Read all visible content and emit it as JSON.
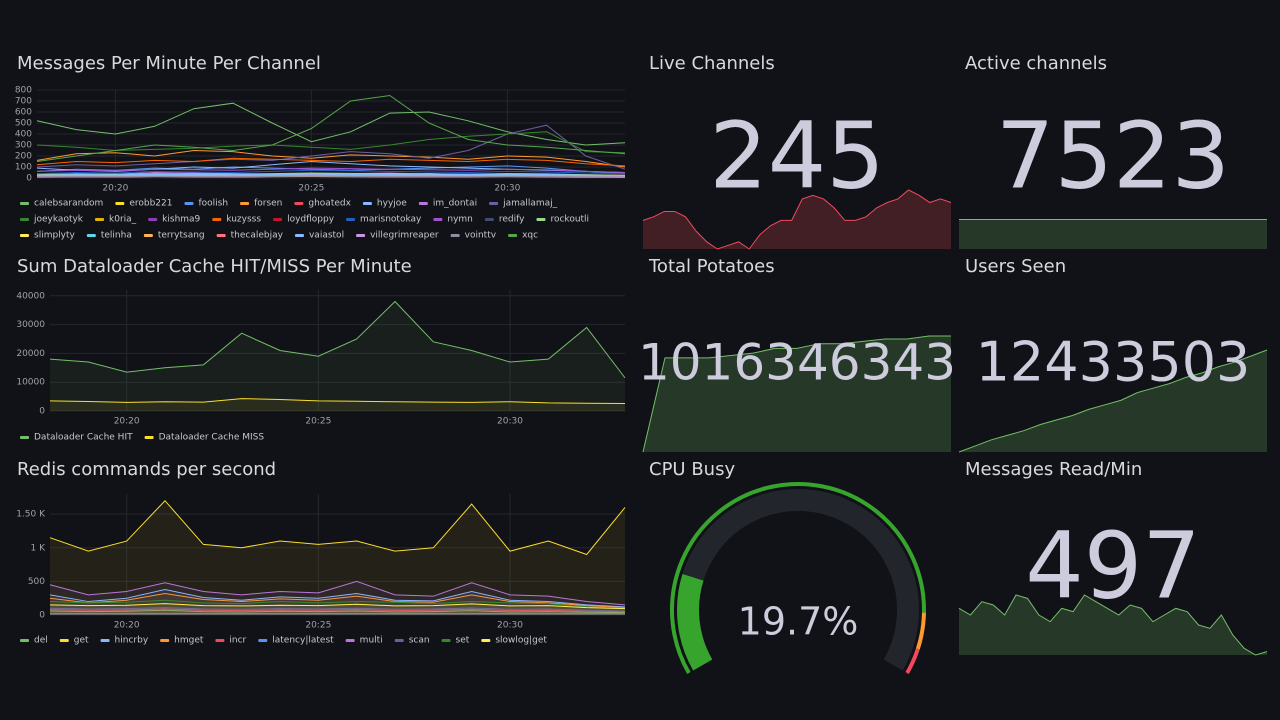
{
  "chart_data": [
    {
      "type": "line",
      "title": "Messages Per Minute Per Channel",
      "x": [
        "20:18",
        "20:19",
        "20:20",
        "20:21",
        "20:22",
        "20:23",
        "20:24",
        "20:25",
        "20:26",
        "20:27",
        "20:28",
        "20:29",
        "20:30",
        "20:31",
        "20:32",
        "20:33"
      ],
      "xticks": [
        "20:20",
        "20:25",
        "20:30"
      ],
      "ylim": [
        0,
        800
      ],
      "yticks": [
        0,
        100,
        200,
        300,
        400,
        500,
        600,
        700,
        800
      ],
      "grid": true,
      "fill": false,
      "series": [
        {
          "name": "calebsarandom",
          "color": "#73bf69",
          "values": [
            520,
            440,
            400,
            470,
            630,
            680,
            500,
            330,
            420,
            590,
            600,
            520,
            420,
            350,
            300,
            320
          ]
        },
        {
          "name": "erobb221",
          "color": "#fade2a",
          "values": [
            40,
            30,
            35,
            30,
            40,
            35,
            30,
            25,
            30,
            35,
            40,
            30,
            25,
            30,
            20,
            15
          ]
        },
        {
          "name": "foolish",
          "color": "#5794f2",
          "values": [
            60,
            80,
            70,
            90,
            80,
            100,
            90,
            80,
            70,
            80,
            90,
            100,
            110,
            90,
            60,
            40
          ]
        },
        {
          "name": "forsen",
          "color": "#ff9830",
          "values": [
            160,
            220,
            230,
            200,
            250,
            240,
            200,
            180,
            210,
            200,
            190,
            170,
            200,
            190,
            150,
            100
          ]
        },
        {
          "name": "ghoatedx",
          "color": "#f2495c",
          "values": [
            20,
            25,
            20,
            30,
            25,
            20,
            30,
            25,
            20,
            30,
            25,
            20,
            15,
            20,
            25,
            20
          ]
        },
        {
          "name": "hyyjoe",
          "color": "#8ab8ff",
          "values": [
            90,
            70,
            60,
            80,
            100,
            90,
            120,
            150,
            130,
            110,
            100,
            90,
            80,
            70,
            60,
            50
          ]
        },
        {
          "name": "im_dontai",
          "color": "#b877d9",
          "values": [
            30,
            40,
            35,
            50,
            45,
            40,
            35,
            30,
            40,
            45,
            35,
            30,
            40,
            35,
            30,
            25
          ]
        },
        {
          "name": "jamallamaj_",
          "color": "#705da0",
          "values": [
            100,
            120,
            110,
            130,
            150,
            170,
            160,
            200,
            240,
            220,
            180,
            250,
            400,
            480,
            200,
            80
          ]
        },
        {
          "name": "joeykaotyk",
          "color": "#37872d",
          "values": [
            300,
            280,
            250,
            260,
            270,
            290,
            300,
            280,
            260,
            300,
            350,
            380,
            400,
            420,
            240,
            230
          ]
        },
        {
          "name": "k0ria_",
          "color": "#e0b400",
          "values": [
            10,
            15,
            10,
            20,
            15,
            10,
            15,
            20,
            10,
            15,
            10,
            20,
            15,
            10,
            5,
            5
          ]
        },
        {
          "name": "kishma9",
          "color": "#8f3bb8",
          "values": [
            20,
            25,
            30,
            25,
            20,
            30,
            25,
            20,
            30,
            25,
            20,
            25,
            30,
            25,
            20,
            15
          ]
        },
        {
          "name": "kuzysss",
          "color": "#fa6400",
          "values": [
            120,
            150,
            140,
            160,
            150,
            180,
            170,
            160,
            150,
            170,
            160,
            150,
            170,
            160,
            130,
            110
          ]
        },
        {
          "name": "loydfloppy",
          "color": "#c4162a",
          "values": [
            5,
            10,
            8,
            12,
            10,
            8,
            10,
            12,
            8,
            10,
            12,
            8,
            10,
            8,
            6,
            5
          ]
        },
        {
          "name": "marisnotokay",
          "color": "#1f60c4",
          "values": [
            40,
            50,
            45,
            60,
            55,
            50,
            60,
            70,
            65,
            60,
            55,
            50,
            60,
            55,
            45,
            40
          ]
        },
        {
          "name": "nymn",
          "color": "#a352cc",
          "values": [
            60,
            70,
            65,
            80,
            75,
            70,
            80,
            90,
            85,
            80,
            75,
            70,
            80,
            75,
            60,
            50
          ]
        },
        {
          "name": "redify",
          "color": "#404e6e",
          "values": [
            15,
            20,
            18,
            22,
            20,
            18,
            22,
            25,
            20,
            22,
            20,
            18,
            20,
            18,
            15,
            12
          ]
        },
        {
          "name": "rockoutli",
          "color": "#96d98d",
          "values": [
            30,
            35,
            32,
            40,
            38,
            35,
            40,
            45,
            42,
            40,
            38,
            35,
            40,
            38,
            30,
            25
          ]
        },
        {
          "name": "slimplyty",
          "color": "#ffee52",
          "values": [
            10,
            12,
            10,
            15,
            12,
            10,
            15,
            18,
            15,
            12,
            10,
            12,
            15,
            12,
            10,
            8
          ]
        },
        {
          "name": "telinha",
          "color": "#5dd9e8",
          "values": [
            20,
            25,
            22,
            28,
            25,
            22,
            28,
            30,
            28,
            25,
            22,
            25,
            28,
            25,
            20,
            18
          ]
        },
        {
          "name": "terrytsang",
          "color": "#ffb357",
          "values": [
            8,
            10,
            9,
            12,
            10,
            9,
            12,
            14,
            12,
            10,
            9,
            10,
            12,
            10,
            8,
            6
          ]
        },
        {
          "name": "thecalebjay",
          "color": "#ff7383",
          "values": [
            12,
            15,
            14,
            18,
            16,
            14,
            18,
            20,
            18,
            16,
            14,
            16,
            18,
            16,
            12,
            10
          ]
        },
        {
          "name": "vaiastol",
          "color": "#8ab8ff",
          "values": [
            25,
            30,
            28,
            35,
            32,
            30,
            35,
            38,
            35,
            32,
            30,
            32,
            35,
            32,
            25,
            20
          ]
        },
        {
          "name": "villegrimreaper",
          "color": "#ca95e5",
          "values": [
            18,
            20,
            19,
            24,
            22,
            20,
            24,
            26,
            24,
            22,
            20,
            22,
            24,
            22,
            18,
            15
          ]
        },
        {
          "name": "vointtv",
          "color": "#8e8ea0",
          "values": [
            10,
            12,
            11,
            14,
            12,
            11,
            14,
            16,
            14,
            12,
            11,
            12,
            14,
            12,
            10,
            8
          ]
        },
        {
          "name": "xqc",
          "color": "#56a64b",
          "values": [
            150,
            200,
            250,
            300,
            280,
            250,
            300,
            450,
            700,
            750,
            500,
            350,
            300,
            280,
            250,
            220
          ]
        }
      ]
    },
    {
      "type": "line",
      "title": "Sum Dataloader Cache HIT/MISS Per Minute",
      "x": [
        "20:18",
        "20:19",
        "20:20",
        "20:21",
        "20:22",
        "20:23",
        "20:24",
        "20:25",
        "20:26",
        "20:27",
        "20:28",
        "20:29",
        "20:30",
        "20:31",
        "20:32",
        "20:33"
      ],
      "xticks": [
        "20:20",
        "20:25",
        "20:30"
      ],
      "ylim": [
        0,
        42000
      ],
      "yticks": [
        0,
        10000,
        20000,
        30000,
        40000
      ],
      "grid": true,
      "fill": true,
      "series": [
        {
          "name": "Dataloader Cache HIT",
          "color": "#73bf69",
          "values": [
            18000,
            17000,
            13500,
            15000,
            16000,
            27000,
            21000,
            19000,
            25000,
            38000,
            24000,
            21000,
            17000,
            18000,
            29000,
            11500
          ]
        },
        {
          "name": "Dataloader Cache MISS",
          "color": "#fade2a",
          "values": [
            3500,
            3300,
            3000,
            3200,
            3100,
            4300,
            4000,
            3500,
            3400,
            3200,
            3100,
            3000,
            3200,
            2800,
            2700,
            2600
          ]
        }
      ]
    },
    {
      "type": "line",
      "title": "Redis commands per second",
      "x": [
        "20:18",
        "20:19",
        "20:20",
        "20:21",
        "20:22",
        "20:23",
        "20:24",
        "20:25",
        "20:26",
        "20:27",
        "20:28",
        "20:29",
        "20:30",
        "20:31",
        "20:32",
        "20:33"
      ],
      "xticks": [
        "20:20",
        "20:25",
        "20:30"
      ],
      "ylim": [
        0,
        1800
      ],
      "yticks": [
        0,
        500,
        {
          "value": 1000,
          "label": "1 K"
        },
        {
          "value": 1500,
          "label": "1.50 K"
        }
      ],
      "grid": true,
      "fill": true,
      "series": [
        {
          "name": "del",
          "color": "#73bf69",
          "values": [
            60,
            50,
            55,
            70,
            50,
            45,
            55,
            50,
            60,
            45,
            50,
            65,
            45,
            50,
            40,
            35
          ]
        },
        {
          "name": "get",
          "color": "#fade2a",
          "values": [
            1150,
            950,
            1100,
            1700,
            1050,
            1000,
            1100,
            1050,
            1100,
            950,
            1000,
            1650,
            950,
            1100,
            900,
            1600
          ]
        },
        {
          "name": "hincrby",
          "color": "#8ab8ff",
          "values": [
            300,
            200,
            250,
            380,
            260,
            220,
            270,
            250,
            320,
            220,
            210,
            350,
            220,
            200,
            150,
            120
          ]
        },
        {
          "name": "hmget",
          "color": "#ff9830",
          "values": [
            250,
            180,
            220,
            320,
            230,
            200,
            240,
            220,
            280,
            200,
            190,
            300,
            200,
            180,
            140,
            110
          ]
        },
        {
          "name": "incr",
          "color": "#f2495c",
          "values": [
            80,
            70,
            75,
            90,
            70,
            65,
            75,
            70,
            80,
            65,
            70,
            85,
            65,
            70,
            55,
            50
          ]
        },
        {
          "name": "latency|latest",
          "color": "#5794f2",
          "values": [
            20,
            20,
            20,
            20,
            20,
            20,
            20,
            20,
            20,
            20,
            20,
            20,
            20,
            20,
            20,
            20
          ]
        },
        {
          "name": "multi",
          "color": "#b877d9",
          "values": [
            450,
            300,
            350,
            480,
            350,
            300,
            350,
            330,
            500,
            300,
            280,
            480,
            300,
            280,
            200,
            150
          ]
        },
        {
          "name": "scan",
          "color": "#705da0",
          "values": [
            100,
            90,
            95,
            110,
            90,
            85,
            95,
            90,
            100,
            85,
            90,
            105,
            85,
            90,
            70,
            60
          ]
        },
        {
          "name": "set",
          "color": "#37872d",
          "values": [
            200,
            180,
            190,
            220,
            180,
            170,
            200,
            180,
            200,
            190,
            170,
            200,
            180,
            170,
            120,
            100
          ]
        },
        {
          "name": "slowlog|get",
          "color": "#ffee52",
          "values": [
            150,
            140,
            145,
            170,
            140,
            135,
            145,
            140,
            160,
            135,
            140,
            165,
            135,
            140,
            110,
            95
          ]
        }
      ]
    },
    {
      "type": "stat",
      "title": "Live Channels",
      "value": 245,
      "color": "#f2495c",
      "sparkline": [
        238,
        240,
        243,
        243,
        240,
        232,
        226,
        222,
        224,
        226,
        222,
        230,
        235,
        238,
        238,
        250,
        252,
        250,
        245,
        238,
        238,
        240,
        245,
        248,
        250,
        255,
        252,
        248,
        250,
        248
      ]
    },
    {
      "type": "stat",
      "title": "Active channels",
      "value": 7523,
      "color": "#73bf69",
      "sparkline": [
        7523,
        7523,
        7523,
        7523,
        7523,
        7523,
        7523,
        7523,
        7523,
        7523
      ]
    },
    {
      "type": "stat",
      "title": "Total Potatoes",
      "value": 1016346343,
      "color": "#73bf69",
      "sparkline": [
        1016100000,
        1016300000,
        1016300000,
        1016300000,
        1016305000,
        1016310000,
        1016320000,
        1016320000,
        1016330000,
        1016330000,
        1016335000,
        1016340000,
        1016340000,
        1016346343,
        1016346343
      ]
    },
    {
      "type": "stat",
      "title": "Users Seen",
      "value": 12433503,
      "color": "#73bf69",
      "sparkline": [
        12400000,
        12402000,
        12404000,
        12405500,
        12407000,
        12409000,
        12410500,
        12412000,
        12414000,
        12415500,
        12417000,
        12419500,
        12421000,
        12422500,
        12424500,
        12426000,
        12428000,
        12429500,
        12431500,
        12433503
      ]
    },
    {
      "type": "gauge",
      "title": "CPU Busy",
      "value": 19.7,
      "value_label": "19.7%",
      "min": 0,
      "max": 100,
      "color": "#37a52d",
      "thresholds": [
        {
          "value": 0,
          "color": "#37a52d"
        },
        {
          "value": 88,
          "color": "#ff9830"
        },
        {
          "value": 95,
          "color": "#f2495c"
        }
      ]
    },
    {
      "type": "stat",
      "title": "Messages Read/Min",
      "value": 497,
      "color": "#73bf69",
      "sparkline": [
        480,
        470,
        490,
        485,
        470,
        500,
        495,
        470,
        460,
        480,
        475,
        500,
        490,
        480,
        470,
        485,
        480,
        460,
        470,
        480,
        475,
        455,
        450,
        470,
        440,
        420,
        410,
        415
      ]
    }
  ]
}
